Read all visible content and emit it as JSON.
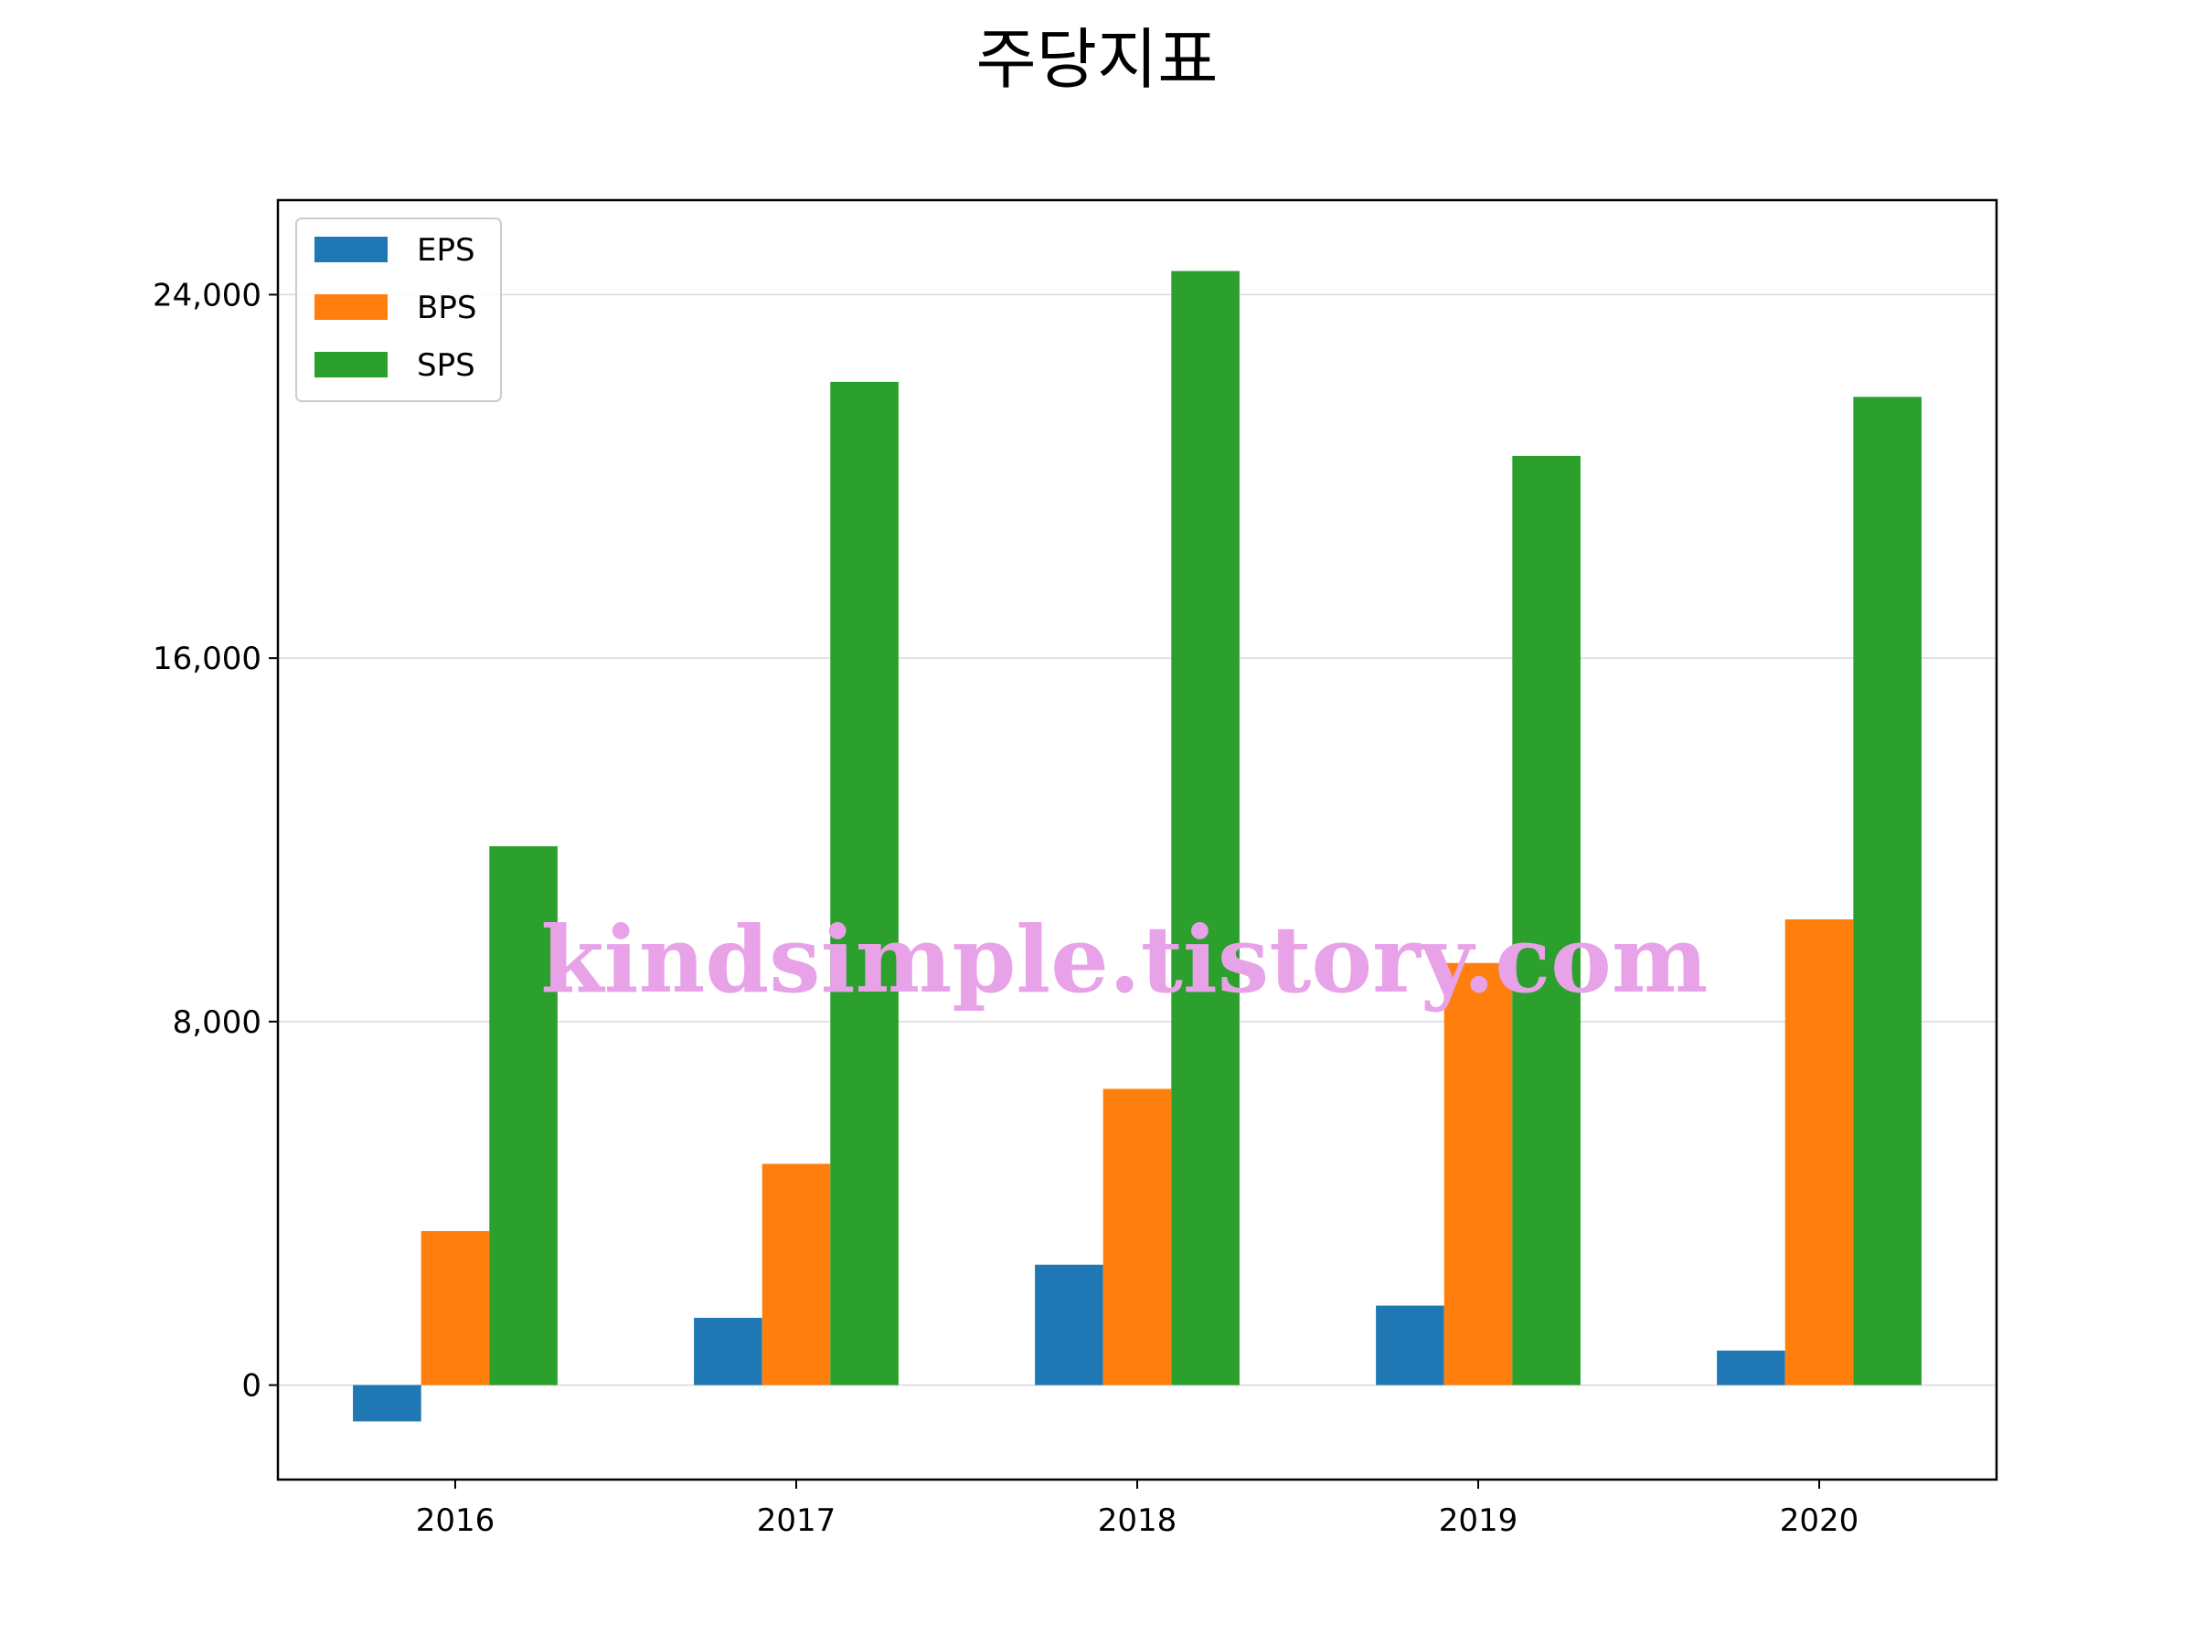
{
  "chart_data": {
    "type": "bar",
    "title": "주당지표",
    "xlabel": "",
    "ylabel": "",
    "categories": [
      "2016",
      "2017",
      "2018",
      "2019",
      "2020"
    ],
    "series": [
      {
        "name": "EPS",
        "color": "#1f77b4",
        "values": [
          -800,
          1480,
          2650,
          1750,
          760
        ]
      },
      {
        "name": "BPS",
        "color": "#ff7f0e",
        "values": [
          3390,
          4870,
          6520,
          9290,
          10250
        ]
      },
      {
        "name": "SPS",
        "color": "#2ca02c",
        "values": [
          11860,
          22080,
          24520,
          20450,
          21750
        ]
      }
    ],
    "ylim": [
      -2080,
      26080
    ],
    "yticks": [
      0,
      8000,
      16000,
      24000
    ],
    "ytick_labels": [
      "0",
      "8,000",
      "16,000",
      "24,000"
    ],
    "grid": "y",
    "legend_position": "top-left"
  },
  "watermark": "kindsimple.tistory.com"
}
